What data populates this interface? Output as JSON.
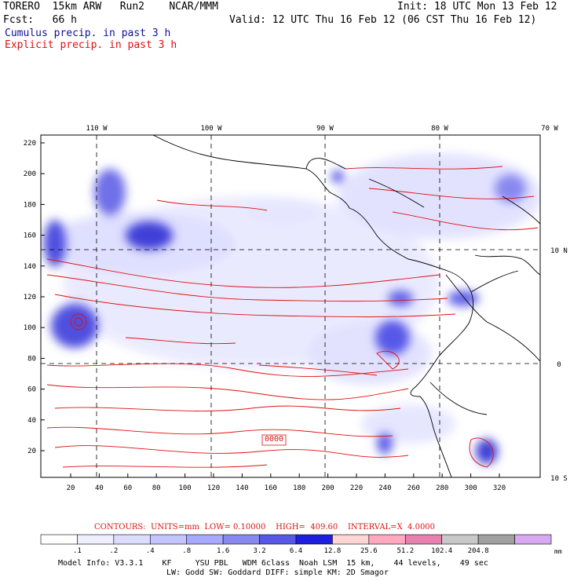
{
  "header": {
    "left_line1": "TORERO  15km ARW   Run2    NCAR/MMM",
    "left_line2": "Fcst:   66 h",
    "right_line1": "Init: 18 UTC Mon 13 Feb 12",
    "right_line2": "Valid: 12 UTC Thu 16 Feb 12 (06 CST Thu 16 Feb 12)",
    "cumulus_label": "Cumulus precip. in past 3 h",
    "explicit_label": "Explicit precip. in past 3 h"
  },
  "map": {
    "lon_labels": [
      "110 W",
      "100 W",
      "90 W",
      "80 W",
      "70 W"
    ],
    "lat_labels": [
      "10 N",
      "0",
      "10 S"
    ],
    "y_ticks": [
      "220",
      "200",
      "180",
      "160",
      "140",
      "120",
      "100",
      "80",
      "60",
      "40",
      "20"
    ],
    "x_ticks": [
      "20",
      "40",
      "60",
      "80",
      "100",
      "120",
      "140",
      "160",
      "180",
      "200",
      "220",
      "240",
      "260",
      "280",
      "300",
      "320"
    ],
    "box_label": "0000"
  },
  "contours": {
    "units": "CONTOURS:  UNITS=mm  LOW= 0.10000",
    "high": "HIGH=  409.60",
    "interval": "INTERVAL=X  4.0000"
  },
  "colorbar": {
    "colors": [
      "#ffffff",
      "#eeeeff",
      "#dcdcff",
      "#c4c4ff",
      "#a8a8ff",
      "#8888f0",
      "#5858e8",
      "#1e1ee0",
      "#ffd4d4",
      "#ffa8c0",
      "#e880b0",
      "#c8c8c8",
      "#a0a0a0",
      "#d8a8f0"
    ],
    "labels": [
      ".1",
      ".2",
      ".4",
      ".8",
      "1.6",
      "3.2",
      "6.4",
      "12.8",
      "25.6",
      "51.2",
      "102.4",
      "204.8"
    ],
    "unit": "mm"
  },
  "model_info": {
    "line1": "Model Info: V3.3.1    KF     YSU PBL   WDM 6class  Noah LSM  15 km,    44 levels,    49 sec",
    "line2": "LW: Godd SW: Goddard DIFF: simple KM: 2D Smagor"
  }
}
